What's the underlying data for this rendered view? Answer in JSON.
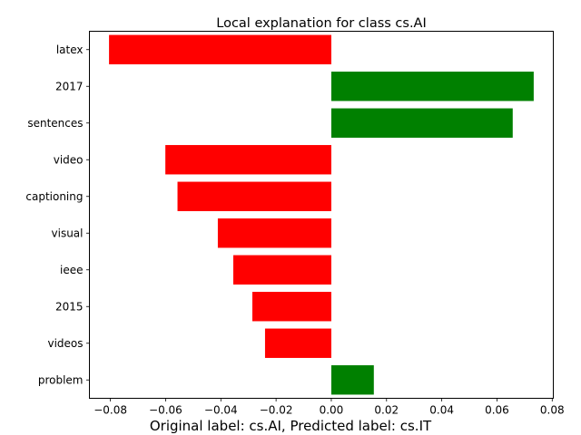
{
  "chart_data": {
    "type": "bar",
    "orientation": "horizontal",
    "title": "Local explanation for class cs.AI",
    "caption": "Original label: cs.AI, Predicted label: cs.IT",
    "categories": [
      "latex",
      "2017",
      "sentences",
      "video",
      "captioning",
      "visual",
      "ieee",
      "2015",
      "videos",
      "problem"
    ],
    "values": [
      -0.0805,
      0.0733,
      0.0657,
      -0.0601,
      -0.0557,
      -0.0411,
      -0.0355,
      -0.0286,
      -0.024,
      0.0154
    ],
    "bar_colors": [
      "#ff0000",
      "#008000",
      "#008000",
      "#ff0000",
      "#ff0000",
      "#ff0000",
      "#ff0000",
      "#ff0000",
      "#ff0000",
      "#008000"
    ],
    "xlim": [
      -0.0876,
      0.0804
    ],
    "xticks": [
      -0.08,
      -0.06,
      -0.04,
      -0.02,
      0.0,
      0.02,
      0.04,
      0.06,
      0.08
    ],
    "xtick_labels": [
      "−0.08",
      "−0.06",
      "−0.04",
      "−0.02",
      "0.00",
      "0.02",
      "0.04",
      "0.06",
      "0.08"
    ],
    "grid": false,
    "colors": {
      "positive": "#008000",
      "negative": "#ff0000"
    }
  }
}
